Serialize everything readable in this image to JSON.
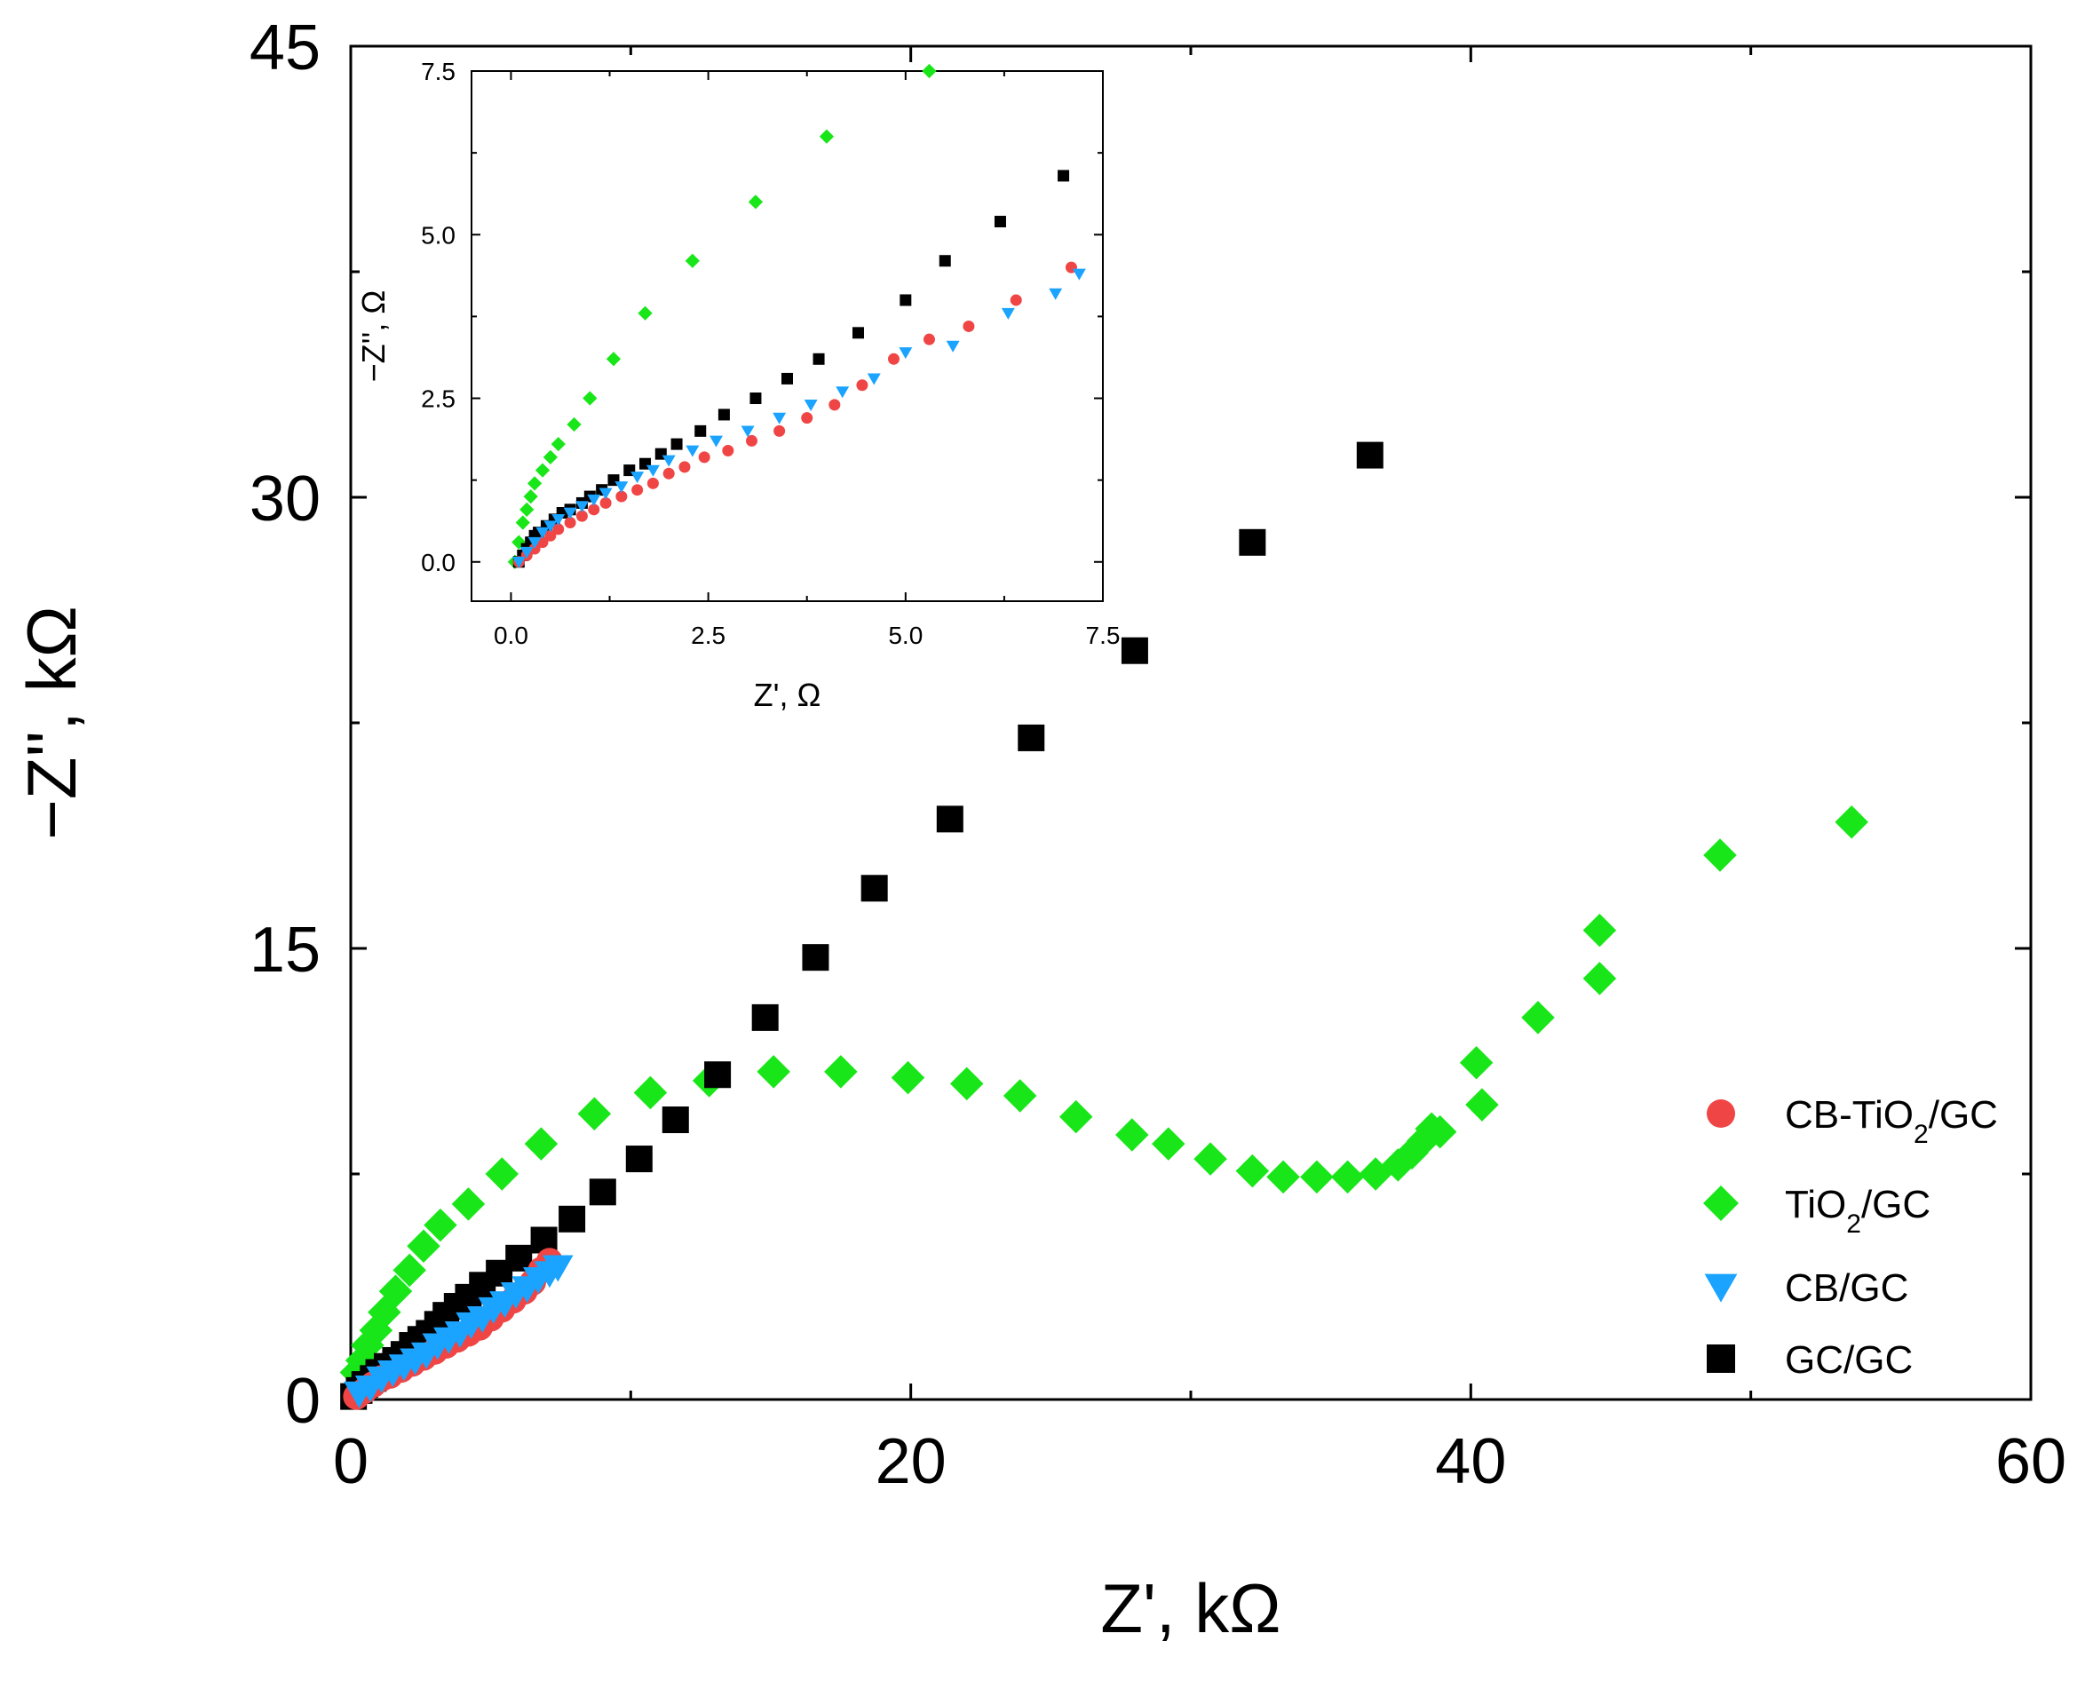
{
  "chart_data": [
    {
      "id": "main",
      "type": "scatter",
      "title": "",
      "xlabel": "Z', kΩ",
      "ylabel": "−Z'', kΩ",
      "xlim": [
        0,
        60
      ],
      "ylim": [
        0,
        45
      ],
      "xticks": [
        0,
        20,
        40,
        60
      ],
      "xtick_labels": [
        "0",
        "20",
        "40",
        "60"
      ],
      "yticks": [
        0,
        15,
        30,
        45
      ],
      "ytick_labels": [
        "0",
        "15",
        "30",
        "45"
      ],
      "grid": false,
      "legend_position": "bottom-right",
      "legend": [
        {
          "label": "CB-TiO",
          "sub": "2",
          "suffix": "/GC",
          "series": "CB-TiO2/GC"
        },
        {
          "label": "TiO",
          "sub": "2",
          "suffix": "/GC",
          "series": "TiO2/GC"
        },
        {
          "label": "CB/GC",
          "sub": "",
          "suffix": "",
          "series": "CB/GC"
        },
        {
          "label": "GC/GC",
          "sub": "",
          "suffix": "",
          "series": "GC/GC"
        }
      ],
      "series": [
        {
          "name": "TiO2/GC",
          "marker": "diamond",
          "color": "#19e619",
          "x": [
            0.2,
            0.4,
            0.6,
            0.9,
            1.2,
            1.6,
            2.1,
            2.6,
            3.2,
            4.2,
            5.4,
            6.8,
            8.7,
            10.7,
            12.8,
            15.1,
            17.5,
            19.9,
            22.0,
            23.9,
            25.9,
            27.9,
            29.2,
            30.7,
            32.2,
            33.3,
            34.5,
            35.6,
            36.6,
            37.4,
            37.9,
            38.3,
            38.6,
            38.9,
            40.4,
            42.4,
            44.6,
            44.6,
            40.2,
            48.9,
            53.6
          ],
          "y": [
            0.9,
            1.3,
            1.8,
            2.3,
            2.9,
            3.6,
            4.3,
            5.1,
            5.8,
            6.5,
            7.5,
            8.5,
            9.5,
            10.2,
            10.6,
            10.9,
            10.9,
            10.7,
            10.5,
            10.1,
            9.4,
            8.8,
            8.5,
            8.0,
            7.6,
            7.4,
            7.4,
            7.4,
            7.5,
            7.8,
            8.2,
            8.6,
            9.0,
            8.9,
            9.8,
            12.7,
            14.0,
            15.6,
            11.2,
            18.1,
            19.2
          ]
        },
        {
          "name": "GC/GC",
          "marker": "square",
          "color": "#000000",
          "x": [
            0.1,
            0.3,
            0.5,
            0.8,
            1.0,
            1.3,
            1.6,
            1.9,
            2.2,
            2.5,
            2.8,
            3.1,
            3.4,
            3.8,
            4.2,
            4.7,
            5.3,
            6.0,
            6.9,
            7.9,
            9.0,
            10.3,
            11.6,
            13.1,
            14.8,
            16.6,
            18.7,
            21.4,
            24.3,
            28.0,
            32.2,
            36.4
          ],
          "y": [
            0.1,
            0.3,
            0.5,
            0.7,
            0.9,
            1.1,
            1.3,
            1.5,
            1.8,
            2.0,
            2.2,
            2.5,
            2.8,
            3.1,
            3.4,
            3.8,
            4.2,
            4.7,
            5.3,
            6.0,
            6.9,
            8.0,
            9.3,
            10.8,
            12.7,
            14.7,
            17.0,
            19.3,
            22.0,
            24.9,
            28.5,
            31.4
          ]
        },
        {
          "name": "CB-TiO2/GC",
          "marker": "circle",
          "color": "#f04545",
          "x": [
            0.2,
            0.5,
            0.8,
            1.1,
            1.4,
            1.8,
            2.2,
            2.6,
            3.0,
            3.4,
            3.8,
            4.2,
            4.6,
            5.0,
            5.4,
            5.8,
            6.2,
            6.5,
            6.8,
            7.1
          ],
          "y": [
            0.1,
            0.3,
            0.5,
            0.7,
            0.8,
            1.0,
            1.2,
            1.4,
            1.6,
            1.8,
            2.0,
            2.2,
            2.4,
            2.7,
            3.0,
            3.3,
            3.6,
            3.9,
            4.3,
            4.6
          ]
        },
        {
          "name": "CB/GC",
          "marker": "triangle-down",
          "color": "#1aa3ff",
          "x": [
            0.3,
            0.7,
            1.1,
            1.5,
            1.9,
            2.3,
            2.7,
            3.1,
            3.5,
            3.9,
            4.3,
            4.7,
            5.1,
            5.5,
            5.9,
            6.3,
            6.7,
            7.1,
            7.4
          ],
          "y": [
            0.2,
            0.4,
            0.7,
            0.9,
            1.1,
            1.3,
            1.5,
            1.8,
            2.0,
            2.2,
            2.5,
            2.7,
            3.0,
            3.2,
            3.5,
            3.7,
            4.0,
            4.2,
            4.4
          ]
        }
      ]
    },
    {
      "id": "inset",
      "type": "scatter",
      "title": "",
      "xlabel": "Z', Ω",
      "ylabel": "−Z'', Ω",
      "xlim": [
        -0.5,
        7.5
      ],
      "ylim": [
        -0.6,
        7.5
      ],
      "xticks": [
        0.0,
        2.5,
        5.0,
        7.5
      ],
      "xtick_labels": [
        "0.0",
        "2.5",
        "5.0",
        "7.5"
      ],
      "yticks": [
        0.0,
        2.5,
        5.0,
        7.5
      ],
      "ytick_labels": [
        "0.0",
        "2.5",
        "5.0",
        "7.5"
      ],
      "grid": false,
      "series": [
        {
          "name": "TiO2/GC",
          "marker": "diamond",
          "color": "#19e619",
          "x": [
            0.05,
            0.1,
            0.15,
            0.2,
            0.25,
            0.3,
            0.4,
            0.5,
            0.6,
            0.8,
            1.0,
            1.3,
            1.7,
            2.3,
            3.1,
            4.0,
            5.3
          ],
          "y": [
            0.0,
            0.3,
            0.6,
            0.8,
            1.0,
            1.2,
            1.4,
            1.6,
            1.8,
            2.1,
            2.5,
            3.1,
            3.8,
            4.6,
            5.5,
            6.5,
            7.5
          ]
        },
        {
          "name": "GC/GC",
          "marker": "square",
          "color": "#000000",
          "x": [
            0.1,
            0.15,
            0.2,
            0.25,
            0.3,
            0.35,
            0.45,
            0.55,
            0.65,
            0.75,
            0.9,
            1.0,
            1.15,
            1.3,
            1.5,
            1.7,
            1.9,
            2.1,
            2.4,
            2.7,
            3.1,
            3.5,
            3.9,
            4.4,
            5.0,
            5.5,
            6.2,
            7.0
          ],
          "y": [
            0.0,
            0.1,
            0.2,
            0.3,
            0.4,
            0.45,
            0.55,
            0.65,
            0.75,
            0.8,
            0.9,
            1.0,
            1.1,
            1.25,
            1.4,
            1.5,
            1.65,
            1.8,
            2.0,
            2.25,
            2.5,
            2.8,
            3.1,
            3.5,
            4.0,
            4.6,
            5.2,
            5.9
          ]
        },
        {
          "name": "CB-TiO2/GC",
          "marker": "circle",
          "color": "#f04545",
          "x": [
            0.1,
            0.2,
            0.3,
            0.4,
            0.5,
            0.6,
            0.75,
            0.9,
            1.05,
            1.2,
            1.4,
            1.6,
            1.8,
            2.0,
            2.2,
            2.45,
            2.75,
            3.05,
            3.4,
            3.75,
            4.1,
            4.45,
            4.85,
            5.3,
            5.8,
            6.4,
            7.1
          ],
          "y": [
            0.0,
            0.1,
            0.2,
            0.3,
            0.4,
            0.5,
            0.6,
            0.7,
            0.8,
            0.9,
            1.0,
            1.1,
            1.2,
            1.35,
            1.45,
            1.6,
            1.7,
            1.85,
            2.0,
            2.2,
            2.4,
            2.7,
            3.1,
            3.4,
            3.6,
            4.0,
            4.5
          ]
        },
        {
          "name": "CB/GC",
          "marker": "triangle-down",
          "color": "#1aa3ff",
          "x": [
            0.1,
            0.2,
            0.3,
            0.4,
            0.5,
            0.6,
            0.75,
            0.9,
            1.05,
            1.2,
            1.4,
            1.6,
            1.8,
            2.0,
            2.3,
            2.6,
            3.0,
            3.4,
            3.8,
            4.2,
            4.6,
            5.0,
            5.6,
            6.3,
            6.9,
            7.2
          ],
          "y": [
            0.0,
            0.15,
            0.3,
            0.45,
            0.55,
            0.65,
            0.75,
            0.85,
            0.95,
            1.05,
            1.15,
            1.3,
            1.4,
            1.55,
            1.7,
            1.85,
            2.0,
            2.2,
            2.4,
            2.6,
            2.8,
            3.2,
            3.3,
            3.8,
            4.1,
            4.4
          ]
        }
      ]
    }
  ]
}
